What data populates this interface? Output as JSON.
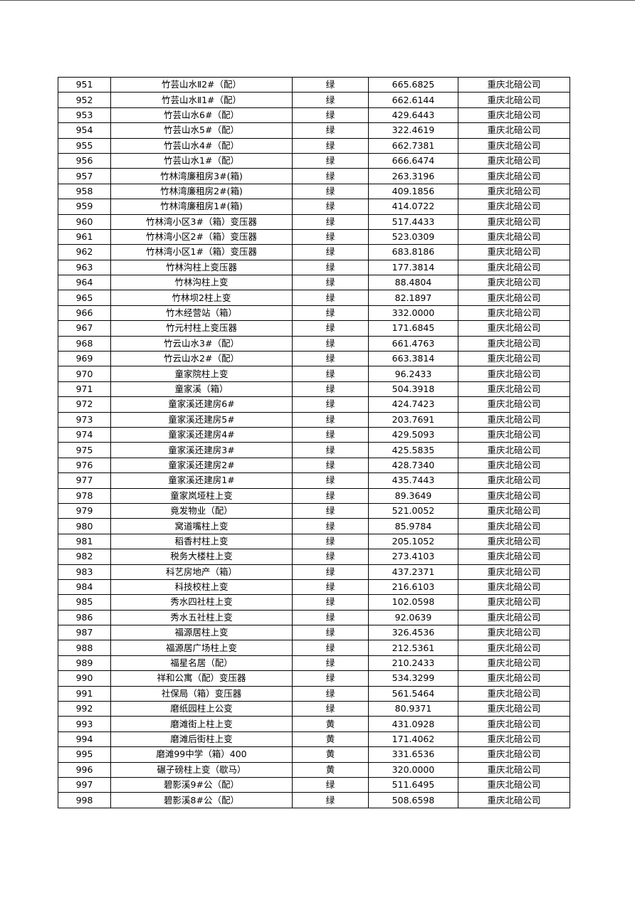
{
  "table": {
    "rows": [
      [
        "951",
        "竹芸山水Ⅱ2#（配）",
        "绿",
        "665.6825",
        "重庆北碚公司"
      ],
      [
        "952",
        "竹芸山水Ⅱ1#（配）",
        "绿",
        "662.6144",
        "重庆北碚公司"
      ],
      [
        "953",
        "竹芸山水6#（配）",
        "绿",
        "429.6443",
        "重庆北碚公司"
      ],
      [
        "954",
        "竹芸山水5#（配）",
        "绿",
        "322.4619",
        "重庆北碚公司"
      ],
      [
        "955",
        "竹芸山水4#（配）",
        "绿",
        "662.7381",
        "重庆北碚公司"
      ],
      [
        "956",
        "竹芸山水1#（配）",
        "绿",
        "666.6474",
        "重庆北碚公司"
      ],
      [
        "957",
        "竹林湾廉租房3#(箱)",
        "绿",
        "263.3196",
        "重庆北碚公司"
      ],
      [
        "958",
        "竹林湾廉租房2#(箱)",
        "绿",
        "409.1856",
        "重庆北碚公司"
      ],
      [
        "959",
        "竹林湾廉租房1#(箱)",
        "绿",
        "414.0722",
        "重庆北碚公司"
      ],
      [
        "960",
        "竹林湾小区3#（箱）变压器",
        "绿",
        "517.4433",
        "重庆北碚公司"
      ],
      [
        "961",
        "竹林湾小区2#（箱）变压器",
        "绿",
        "523.0309",
        "重庆北碚公司"
      ],
      [
        "962",
        "竹林湾小区1#（箱）变压器",
        "绿",
        "683.8186",
        "重庆北碚公司"
      ],
      [
        "963",
        "竹林沟柱上变压器",
        "绿",
        "177.3814",
        "重庆北碚公司"
      ],
      [
        "964",
        "竹林沟柱上变",
        "绿",
        "88.4804",
        "重庆北碚公司"
      ],
      [
        "965",
        "竹林坝2柱上变",
        "绿",
        "82.1897",
        "重庆北碚公司"
      ],
      [
        "966",
        "竹木经营站（箱）",
        "绿",
        "332.0000",
        "重庆北碚公司"
      ],
      [
        "967",
        "竹元村柱上变压器",
        "绿",
        "171.6845",
        "重庆北碚公司"
      ],
      [
        "968",
        "竹云山水3#（配）",
        "绿",
        "661.4763",
        "重庆北碚公司"
      ],
      [
        "969",
        "竹云山水2#（配）",
        "绿",
        "663.3814",
        "重庆北碚公司"
      ],
      [
        "970",
        "童家院柱上变",
        "绿",
        "96.2433",
        "重庆北碚公司"
      ],
      [
        "971",
        "童家溪（箱）",
        "绿",
        "504.3918",
        "重庆北碚公司"
      ],
      [
        "972",
        "童家溪还建房6#",
        "绿",
        "424.7423",
        "重庆北碚公司"
      ],
      [
        "973",
        "童家溪还建房5#",
        "绿",
        "203.7691",
        "重庆北碚公司"
      ],
      [
        "974",
        "童家溪还建房4#",
        "绿",
        "429.5093",
        "重庆北碚公司"
      ],
      [
        "975",
        "童家溪还建房3#",
        "绿",
        "425.5835",
        "重庆北碚公司"
      ],
      [
        "976",
        "童家溪还建房2#",
        "绿",
        "428.7340",
        "重庆北碚公司"
      ],
      [
        "977",
        "童家溪还建房1#",
        "绿",
        "435.7443",
        "重庆北碚公司"
      ],
      [
        "978",
        "童家岚垭柱上变",
        "绿",
        "89.3649",
        "重庆北碚公司"
      ],
      [
        "979",
        "竟发物业（配）",
        "绿",
        "521.0052",
        "重庆北碚公司"
      ],
      [
        "980",
        "窝道嘴柱上变",
        "绿",
        "85.9784",
        "重庆北碚公司"
      ],
      [
        "981",
        "稻香村柱上变",
        "绿",
        "205.1052",
        "重庆北碚公司"
      ],
      [
        "982",
        "税务大楼柱上变",
        "绿",
        "273.4103",
        "重庆北碚公司"
      ],
      [
        "983",
        "科艺房地产（箱）",
        "绿",
        "437.2371",
        "重庆北碚公司"
      ],
      [
        "984",
        "科技校柱上变",
        "绿",
        "216.6103",
        "重庆北碚公司"
      ],
      [
        "985",
        "秀水四社柱上变",
        "绿",
        "102.0598",
        "重庆北碚公司"
      ],
      [
        "986",
        "秀水五社柱上变",
        "绿",
        "92.0639",
        "重庆北碚公司"
      ],
      [
        "987",
        "福源居柱上变",
        "绿",
        "326.4536",
        "重庆北碚公司"
      ],
      [
        "988",
        "福源居广场柱上变",
        "绿",
        "212.5361",
        "重庆北碚公司"
      ],
      [
        "989",
        "福星名居（配）",
        "绿",
        "210.2433",
        "重庆北碚公司"
      ],
      [
        "990",
        "祥和公寓（配）变压器",
        "绿",
        "534.3299",
        "重庆北碚公司"
      ],
      [
        "991",
        "社保局（箱）变压器",
        "绿",
        "561.5464",
        "重庆北碚公司"
      ],
      [
        "992",
        "磨纸园柱上公变",
        "绿",
        "80.9371",
        "重庆北碚公司"
      ],
      [
        "993",
        "磨滩街上柱上变",
        "黄",
        "431.0928",
        "重庆北碚公司"
      ],
      [
        "994",
        "磨滩后街柱上变",
        "黄",
        "171.4062",
        "重庆北碚公司"
      ],
      [
        "995",
        "磨滩99中学（箱）400",
        "黄",
        "331.6536",
        "重庆北碚公司"
      ],
      [
        "996",
        "碾子磅柱上变（歇马）",
        "黄",
        "320.0000",
        "重庆北碚公司"
      ],
      [
        "997",
        "碧影溪9#公（配）",
        "绿",
        "511.6495",
        "重庆北碚公司"
      ],
      [
        "998",
        "碧影溪8#公（配）",
        "绿",
        "508.6598",
        "重庆北碚公司"
      ]
    ]
  }
}
